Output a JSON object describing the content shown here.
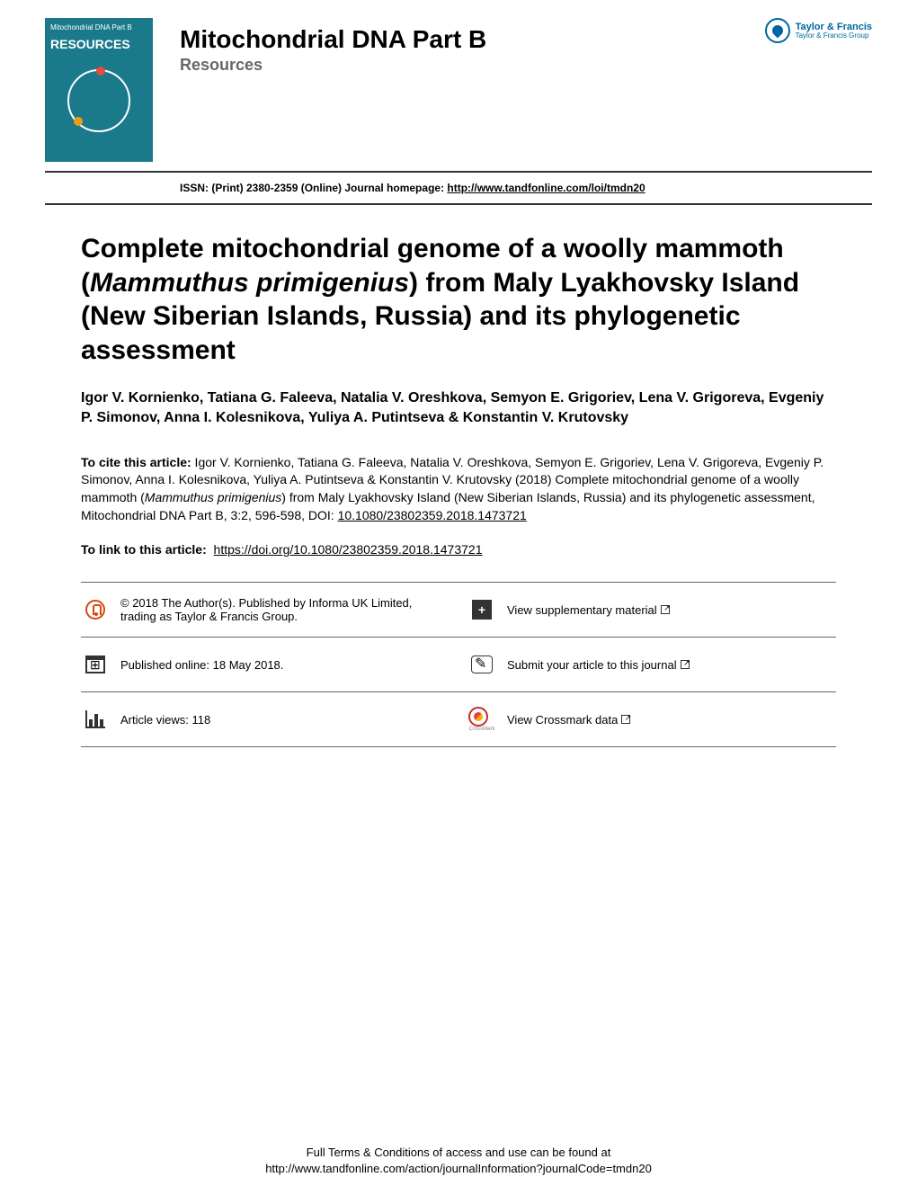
{
  "publisher": {
    "name": "Taylor & Francis",
    "tagline": "Taylor & Francis Group"
  },
  "journal": {
    "cover_small_text": "Mitochondrial DNA Part B",
    "cover_title": "RESOURCES",
    "title": "Mitochondrial DNA Part B",
    "subtitle": "Resources"
  },
  "issn_line": {
    "prefix": "ISSN: (Print) 2380-2359 (Online) Journal homepage: ",
    "url": "http://www.tandfonline.com/loi/tmdn20"
  },
  "article": {
    "title_html": "Complete mitochondrial genome of a woolly mammoth (<em>Mammuthus primigenius</em>) from Maly Lyakhovsky Island (New Siberian Islands, Russia) and its phylogenetic assessment",
    "authors": "Igor V. Kornienko, Tatiana G. Faleeva, Natalia V. Oreshkova, Semyon E. Grigoriev, Lena V. Grigoreva, Evgeniy P. Simonov, Anna I. Kolesnikova, Yuliya A. Putintseva & Konstantin V. Krutovsky"
  },
  "citation": {
    "label": "To cite this article:",
    "text_html": " Igor V. Kornienko, Tatiana G. Faleeva, Natalia V. Oreshkova, Semyon E. Grigoriev, Lena V. Grigoreva, Evgeniy P. Simonov, Anna I. Kolesnikova, Yuliya A. Putintseva & Konstantin V. Krutovsky (2018) Complete mitochondrial genome of a woolly mammoth (<em>Mammuthus primigenius</em>) from Maly Lyakhovsky Island (New Siberian Islands, Russia) and its phylogenetic assessment, Mitochondrial DNA Part B, 3:2, 596-598, DOI: ",
    "doi": "10.1080/23802359.2018.1473721"
  },
  "link_to": {
    "label": "To link to this article:",
    "url": "https://doi.org/10.1080/23802359.2018.1473721"
  },
  "info_grid": {
    "copyright": "© 2018 The Author(s). Published by Informa UK Limited, trading as Taylor & Francis Group.",
    "supplementary": "View supplementary material",
    "published": "Published online: 18 May 2018.",
    "submit": "Submit your article to this journal",
    "views": "Article views: 118",
    "crossmark": "View Crossmark data",
    "crossmark_tiny": "CrossMark"
  },
  "footer": {
    "line1": "Full Terms & Conditions of access and use can be found at",
    "line2": "http://www.tandfonline.com/action/journalInformation?journalCode=tmdn20"
  },
  "colors": {
    "cover_bg": "#1a7a8c",
    "publisher_blue": "#0066a1",
    "divider": "#333333",
    "open_access_orange": "#d9480f",
    "crossmark_red": "#c92a2a",
    "text_gray": "#666666"
  }
}
